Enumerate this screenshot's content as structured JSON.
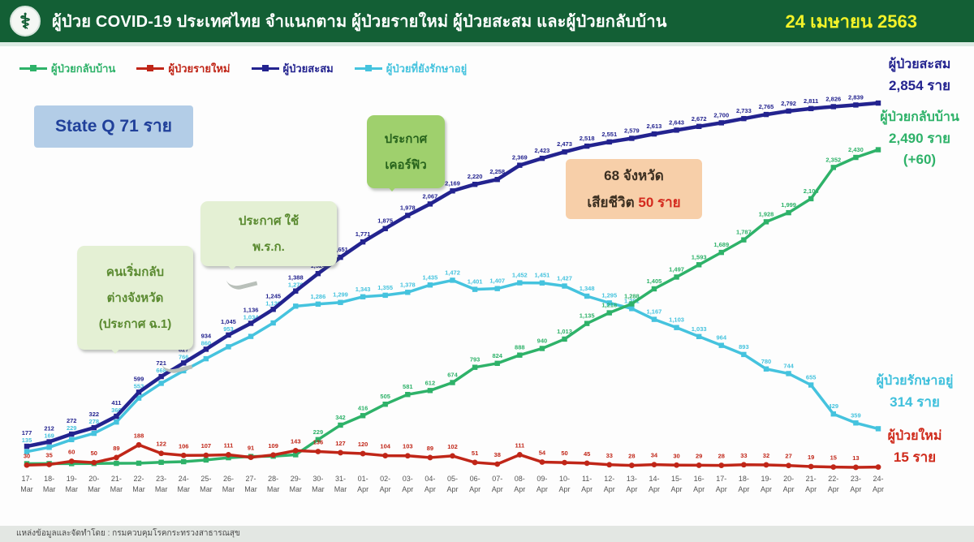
{
  "header": {
    "title": "ผู้ป่วย COVID-19 ประเทศไทย จำแนกตาม ผู้ป่วยรายใหม่ ผู้ป่วยสะสม  และผู้ป่วยกลับบ้าน",
    "date": "24 เมษายน 2563",
    "logo_glyph": "⚕"
  },
  "legend": [
    {
      "label": "ผู้ป่วยกลับบ้าน",
      "color": "#2eb269"
    },
    {
      "label": "ผู้ป่วยรายใหม่",
      "color": "#c02618"
    },
    {
      "label": "ผู้ป่วยสะสม",
      "color": "#23238f"
    },
    {
      "label": "ผู้ป่วยที่ยังรักษาอยู่",
      "color": "#45c3de"
    }
  ],
  "annotations": {
    "state_q": "State Q  71 ราย",
    "box1": {
      "line1": "คนเริ่มกลับ",
      "line2": "ต่างจังหวัด",
      "line3": "(ประกาศ ฉ.1)"
    },
    "box2": {
      "line1": "ประกาศ ใช้",
      "line2": "พ.ร.ก."
    },
    "box3": {
      "line1": "ประกาศ",
      "line2": "เคอร์ฟิว"
    },
    "deaths": {
      "line1": "68 จังหวัด",
      "line2_prefix": "เสียชีวิต",
      "line2_value": "50 ราย"
    }
  },
  "side_labels": {
    "cumulative": {
      "title": "ผู้ป่วยสะสม",
      "value": "2,854 ราย"
    },
    "recovered": {
      "title": "ผู้ป่วยกลับบ้าน",
      "value": "2,490 ราย",
      "delta": "(+60)"
    },
    "active": {
      "title": "ผู้ป่วยรักษาอยู่",
      "value": "314 ราย"
    },
    "new": {
      "title": "ผู้ป่วยใหม่",
      "value": "15 ราย"
    }
  },
  "footer": "แหล่งข้อมูลและจัดทำโดย : กรมควบคุมโรคกระทรวงสาธารณสุข",
  "chart_data": {
    "type": "line",
    "title": "ผู้ป่วย COVID-19 ประเทศไทย จำแนกตาม ผู้ป่วยรายใหม่ ผู้ป่วยสะสม และผู้ป่วยกลับบ้าน",
    "xlabel": "",
    "ylabel": "",
    "ylim": [
      0,
      3000
    ],
    "grid": false,
    "legend_position": "top-left",
    "x": [
      "17-Mar",
      "18-Mar",
      "19-Mar",
      "20-Mar",
      "21-Mar",
      "22-Mar",
      "23-Mar",
      "24-Mar",
      "25-Mar",
      "26-Mar",
      "27-Mar",
      "28-Mar",
      "29-Mar",
      "30-Mar",
      "31-Mar",
      "01-Apr",
      "02-Apr",
      "03-Apr",
      "04-Apr",
      "05-Apr",
      "06-Apr",
      "07-Apr",
      "08-Apr",
      "09-Apr",
      "10-Apr",
      "11-Apr",
      "12-Apr",
      "13-Apr",
      "14-Apr",
      "15-Apr",
      "16-Apr",
      "17-Apr",
      "18-Apr",
      "19-Apr",
      "20-Apr",
      "21-Apr",
      "22-Apr",
      "23-Apr",
      "24-Apr"
    ],
    "series": [
      {
        "key": "cumulative",
        "name": "ผู้ป่วยสะสม",
        "color": "#23238f",
        "marker": "square",
        "values": [
          177,
          212,
          272,
          322,
          411,
          599,
          721,
          827,
          934,
          1045,
          1136,
          1245,
          1388,
          1524,
          1651,
          1771,
          1875,
          1978,
          2067,
          2169,
          2220,
          2258,
          2369,
          2423,
          2473,
          2518,
          2551,
          2579,
          2613,
          2643,
          2672,
          2700,
          2733,
          2765,
          2792,
          2811,
          2826,
          2839,
          2854
        ]
      },
      {
        "key": "active",
        "name": "ผู้ป่วยที่ยังรักษาอยู่",
        "color": "#45c3de",
        "marker": "square",
        "values": [
          135,
          169,
          229,
          278,
          366,
          553,
          668,
          766,
          860,
          953,
          1034,
          1139,
          1270,
          1286,
          1299,
          1343,
          1355,
          1378,
          1435,
          1472,
          1401,
          1407,
          1452,
          1451,
          1427,
          1348,
          1295,
          1251,
          1167,
          1103,
          1033,
          964,
          893,
          780,
          744,
          655,
          429,
          359,
          314
        ]
      },
      {
        "key": "recovered",
        "name": "ผู้ป่วยกลับบ้าน",
        "color": "#2eb269",
        "marker": "square",
        "values": [
          41,
          42,
          42,
          43,
          44,
          45,
          52,
          57,
          70,
          88,
          97,
          100,
          111,
          229,
          342,
          416,
          505,
          581,
          612,
          674,
          793,
          824,
          888,
          940,
          1013,
          1135,
          1218,
          1288,
          1405,
          1497,
          1593,
          1689,
          1787,
          1928,
          1999,
          2108,
          2352,
          2430,
          2490
        ]
      },
      {
        "key": "new",
        "name": "ผู้ป่วยรายใหม่",
        "color": "#c02618",
        "marker": "circle",
        "values": [
          30,
          35,
          60,
          50,
          89,
          188,
          122,
          106,
          107,
          111,
          91,
          109,
          143,
          136,
          127,
          120,
          104,
          103,
          89,
          102,
          51,
          38,
          111,
          54,
          50,
          45,
          33,
          28,
          34,
          30,
          29,
          28,
          33,
          32,
          27,
          19,
          15,
          13,
          15
        ]
      }
    ]
  }
}
